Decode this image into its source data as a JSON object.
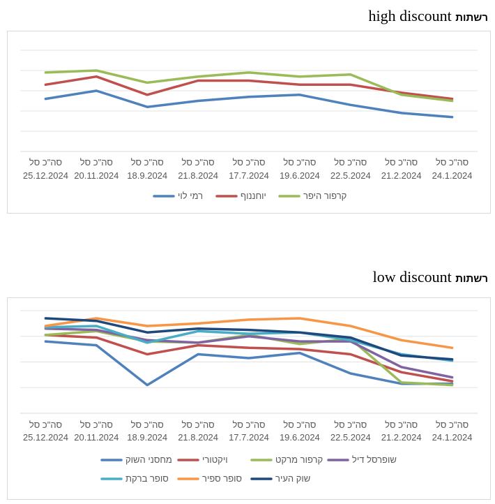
{
  "chart_data": [
    {
      "type": "line",
      "title": "רשתות",
      "title_suffix": "high discount",
      "categories": [
        [
          "סה\"כ סל",
          "25.12.2024"
        ],
        [
          "סה\"כ סל",
          "20.11.2024"
        ],
        [
          "סה\"כ סל",
          "18.9.2024"
        ],
        [
          "סה\"כ סל",
          "21.8.2024"
        ],
        [
          "סה\"כ סל",
          "17.7.2024"
        ],
        [
          "סה\"כ סל",
          "19.6.2024"
        ],
        [
          "סה\"כ סל",
          "22.5.2024"
        ],
        [
          "סה\"כ סל",
          "21.2.2024"
        ],
        [
          "סה\"כ סל",
          "24.1.2024"
        ]
      ],
      "ylim": [
        0,
        5
      ],
      "grid": true,
      "y_tick_labels": false,
      "legend_position": "bottom",
      "series": [
        {
          "name": "רמי לוי",
          "color": "#4f81bd",
          "values": [
            2.6,
            3.0,
            2.2,
            2.5,
            2.7,
            2.8,
            2.3,
            1.9,
            1.7
          ]
        },
        {
          "name": "יוחננוף",
          "color": "#c0504d",
          "values": [
            3.3,
            3.7,
            2.8,
            3.5,
            3.5,
            3.3,
            3.3,
            2.9,
            2.6
          ]
        },
        {
          "name": "קרפור היפר",
          "color": "#9bbb59",
          "values": [
            3.9,
            4.0,
            3.4,
            3.7,
            3.9,
            3.7,
            3.8,
            2.8,
            2.5
          ]
        }
      ]
    },
    {
      "type": "line",
      "title": "רשתות",
      "title_suffix": "low discount",
      "categories": [
        [
          "סה\"כ סל",
          "25.12.2024"
        ],
        [
          "סה\"כ סל",
          "20.11.2024"
        ],
        [
          "סה\"כ סל",
          "18.9.2024"
        ],
        [
          "סה\"כ סל",
          "21.8.2024"
        ],
        [
          "סה\"כ סל",
          "17.7.2024"
        ],
        [
          "סה\"כ סל",
          "19.6.2024"
        ],
        [
          "סה\"כ סל",
          "22.5.2024"
        ],
        [
          "סה\"כ סל",
          "21.2.2024"
        ],
        [
          "סה\"כ סל",
          "24.1.2024"
        ]
      ],
      "ylim": [
        0,
        4
      ],
      "grid": true,
      "y_tick_labels": false,
      "legend_position": "bottom",
      "series": [
        {
          "name": "מחסני השוק",
          "color": "#4f81bd",
          "values": [
            2.8,
            2.65,
            1.1,
            2.3,
            2.15,
            2.35,
            1.55,
            1.15,
            1.15
          ]
        },
        {
          "name": "ויקטורי",
          "color": "#c0504d",
          "values": [
            3.05,
            2.95,
            2.3,
            2.65,
            2.55,
            2.5,
            2.3,
            1.6,
            1.25
          ]
        },
        {
          "name": "קרפור מרקט",
          "color": "#9bbb59",
          "values": [
            3.05,
            3.2,
            2.8,
            2.75,
            3.05,
            2.7,
            2.9,
            1.2,
            1.1
          ]
        },
        {
          "name": "שופרסל דיל",
          "color": "#8064a2",
          "values": [
            3.3,
            3.25,
            2.85,
            2.75,
            3.0,
            2.8,
            2.8,
            1.8,
            1.4
          ]
        },
        {
          "name": "סופר ברקת",
          "color": "#4bacc6",
          "values": [
            3.35,
            3.4,
            2.75,
            3.2,
            3.1,
            3.15,
            2.85,
            2.3,
            2.05
          ]
        },
        {
          "name": "סופר ספיר",
          "color": "#f79646",
          "values": [
            3.4,
            3.7,
            3.4,
            3.5,
            3.65,
            3.7,
            3.4,
            2.85,
            2.55
          ]
        },
        {
          "name": "שוק העיר",
          "color": "#1f497d",
          "values": [
            3.7,
            3.6,
            3.15,
            3.3,
            3.25,
            3.15,
            2.95,
            2.25,
            2.1
          ]
        }
      ]
    }
  ]
}
